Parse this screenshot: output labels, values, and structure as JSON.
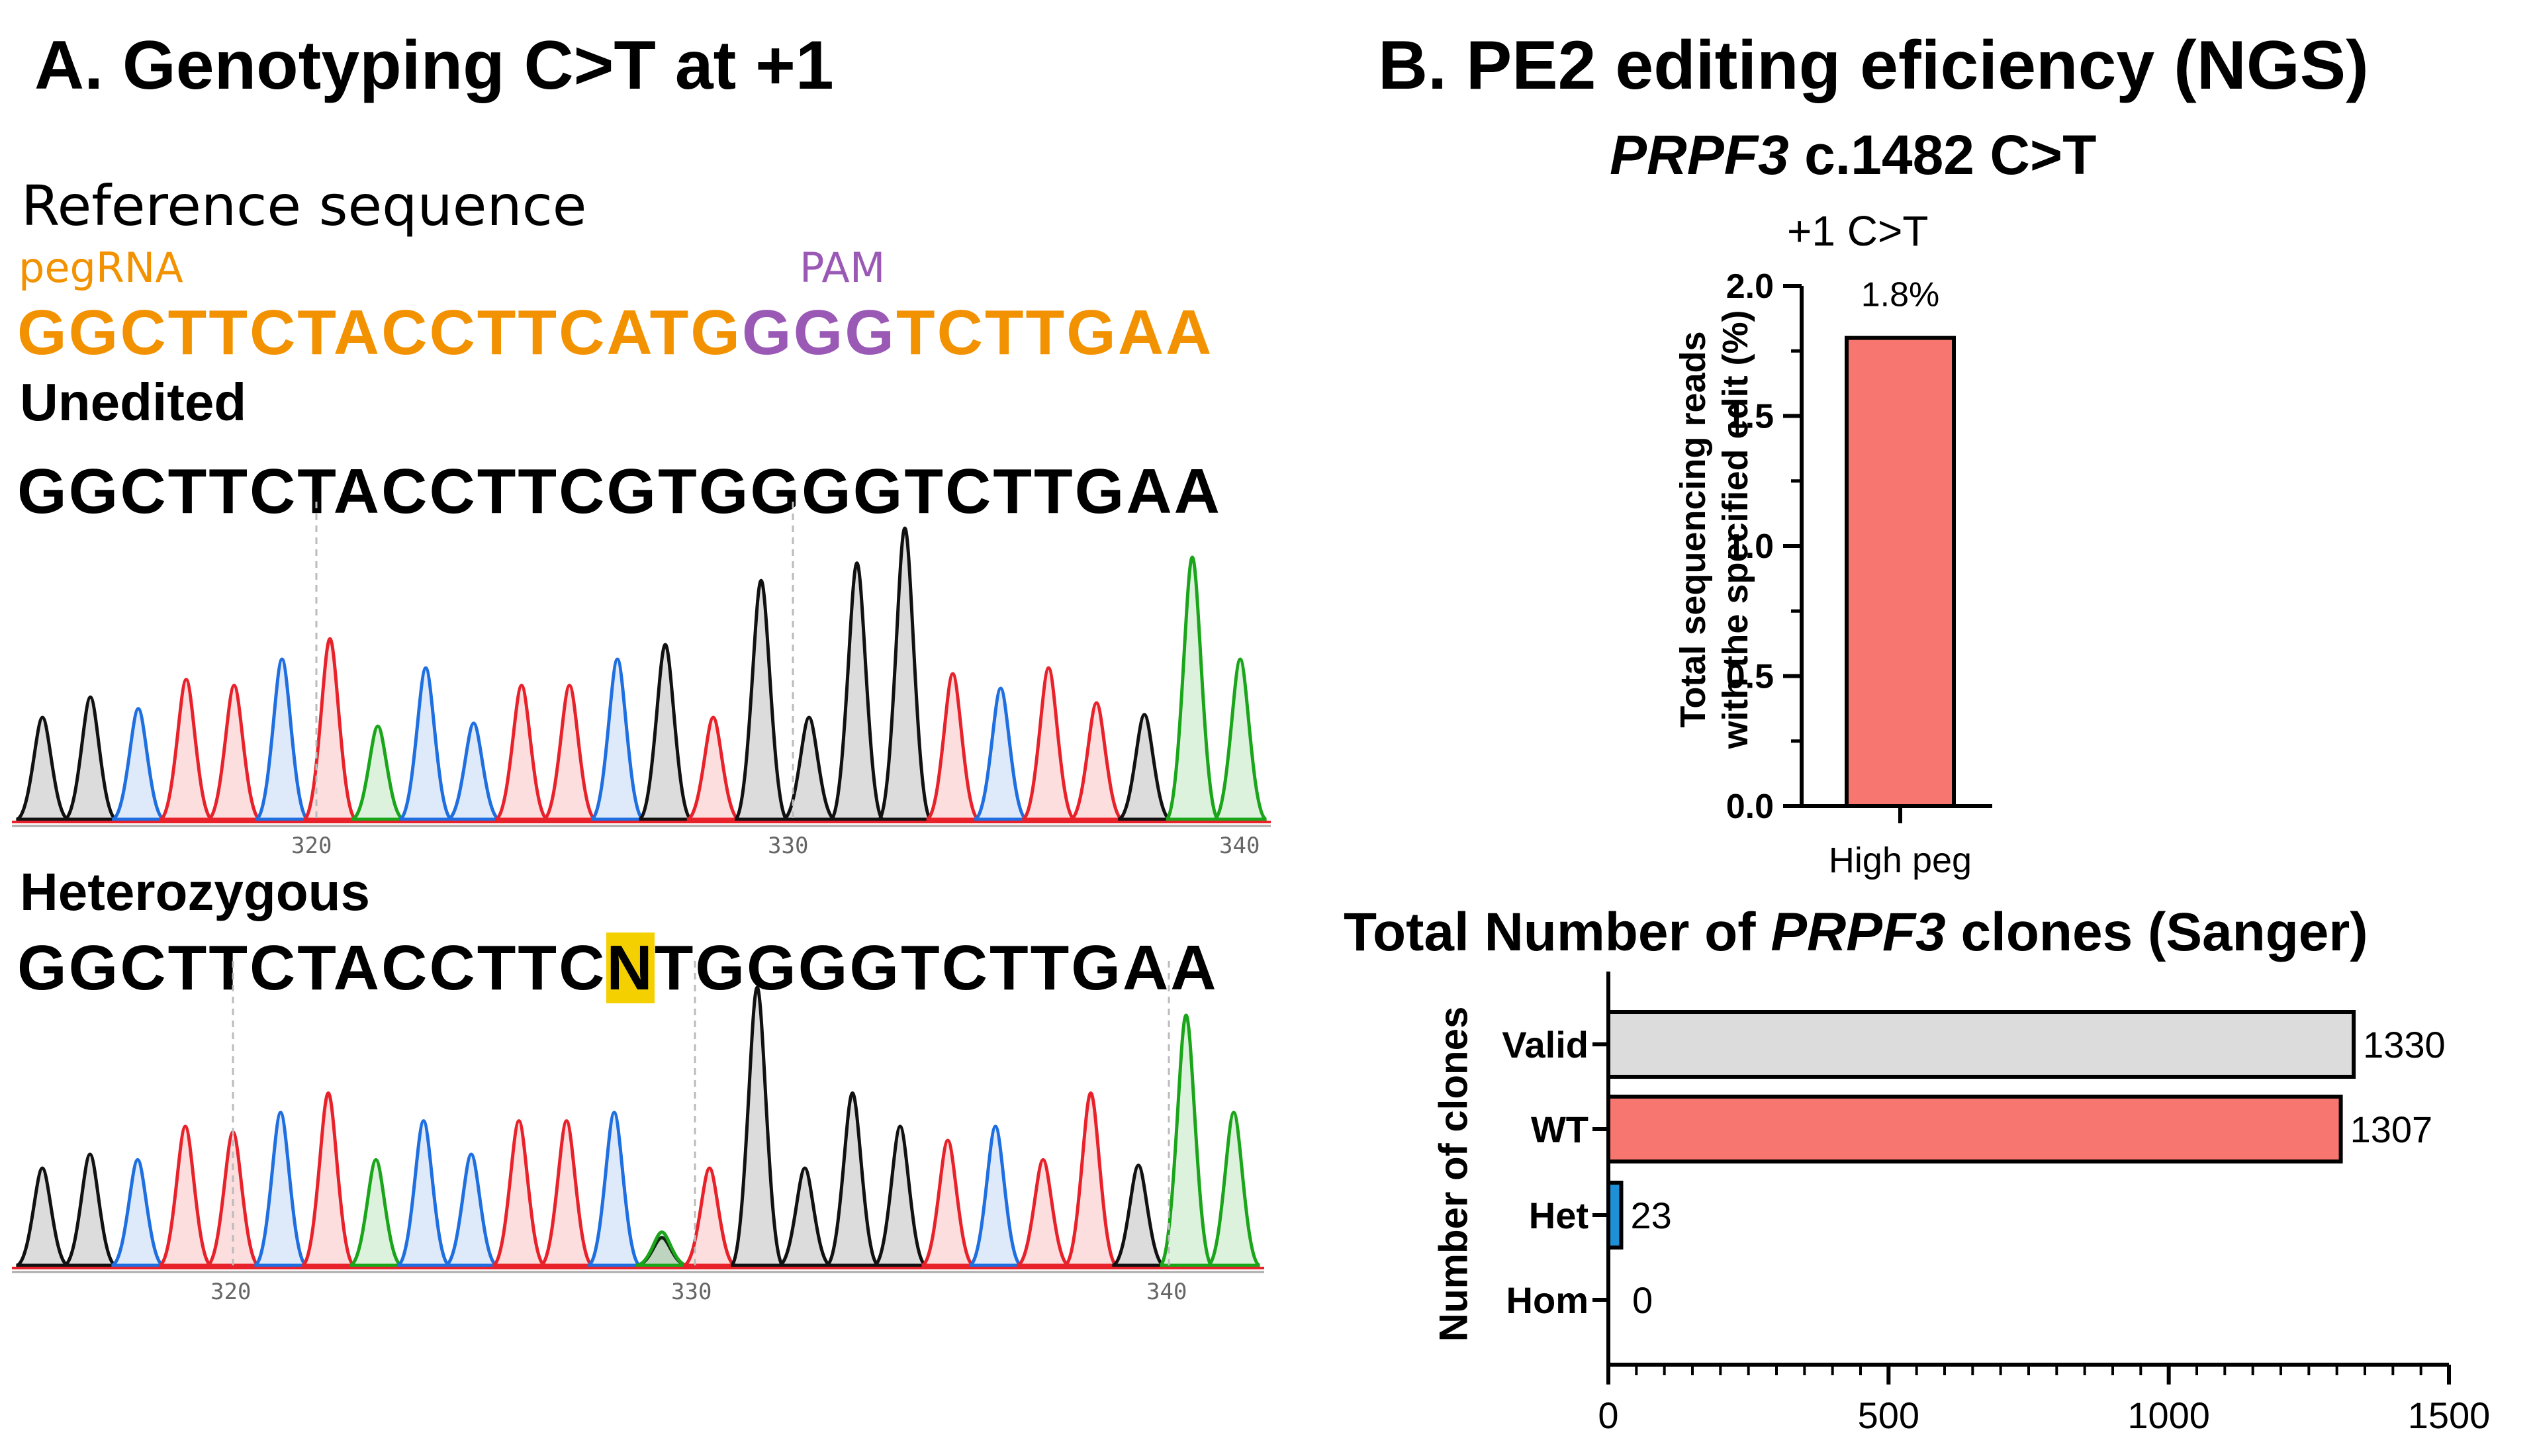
{
  "panel_a": {
    "title": "A. Genotyping C>T at +1",
    "reference_label": "Reference sequence",
    "pegrna_label": "pegRNA",
    "pam_label": "PAM",
    "reference_seq_pegrna": "GGCTTCTACCTTCATG",
    "reference_seq_pam": "GGG",
    "reference_seq_tail": "TCTTGAA",
    "unedited_label": "Unedited",
    "unedited_seq": "GGCTTCTACCTTCGTGGGGTCTTGAA",
    "heterozygous_label": "Heterozygous",
    "het_seq_before": "GGCTTCTACCTTC",
    "het_seq_n": "N",
    "het_seq_after": "TGGGGTCTTGAA",
    "trace1_ticks": [
      "320",
      "330",
      "340"
    ],
    "trace2_ticks": [
      "320",
      "330",
      "340"
    ],
    "colors": {
      "pegrna": "#f39200",
      "pam": "#9b59b6",
      "A": "#1aa51a",
      "C": "#1f6fe0",
      "G": "#111111",
      "T": "#e8222a",
      "highlight": "#f5d000"
    }
  },
  "panel_b": {
    "title": "B. PE2 editing eficiency (NGS)",
    "subtitle_gene": "PRPF3",
    "subtitle_rest": " c.1482 C>T"
  },
  "chart_data": [
    {
      "type": "bar",
      "title": "+1 C>T",
      "categories": [
        "High peg"
      ],
      "values": [
        1.8
      ],
      "data_labels": [
        "1.8%"
      ],
      "ylabel": "Total sequencing reads with the specified edit (%)",
      "ylabel_line1": "Total sequencing reads",
      "ylabel_line2": "with the specified edit (%)",
      "xlabel": "",
      "ylim": [
        0,
        2.0
      ],
      "yticks": [
        "0.0",
        "0.5",
        "1.0",
        "1.5",
        "2.0"
      ],
      "bar_color": "#f87670"
    },
    {
      "type": "bar",
      "orientation": "horizontal",
      "title_prefix": "Total Number of ",
      "title_gene": "PRPF3",
      "title_suffix": " clones (Sanger)",
      "categories": [
        "Valid",
        "WT",
        "Het",
        "Hom"
      ],
      "values": [
        1330,
        1307,
        23,
        0
      ],
      "data_labels": [
        "1330",
        "1307",
        "23",
        "0"
      ],
      "colors": [
        "#dcdcdc",
        "#f87670",
        "#1f8fd6",
        "#ffffff"
      ],
      "ylabel": "Number of clones",
      "xlabel": "",
      "xlim": [
        0,
        1500
      ],
      "xticks": [
        "0",
        "500",
        "1000",
        "1500"
      ]
    }
  ]
}
